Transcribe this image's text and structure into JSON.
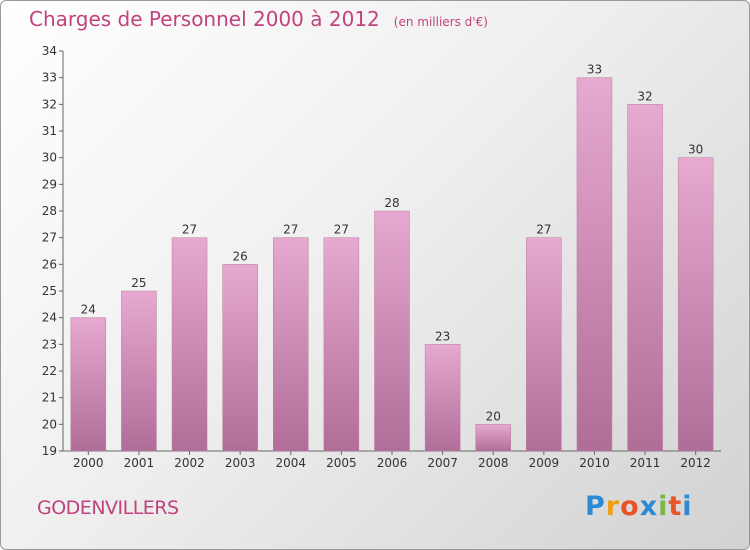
{
  "title": "Charges de Personnel 2000 à 2012",
  "subtitle": "(en milliers d'€)",
  "place_name": "GODENVILLERS",
  "logo": {
    "letters": [
      "P",
      "r",
      "o",
      "x",
      "i",
      "t",
      "i"
    ],
    "colors": [
      "#2b8ad6",
      "#f0a018",
      "#e8542a",
      "#2b8ad6",
      "#7ab648",
      "#e8542a",
      "#2b8ad6"
    ]
  },
  "colors": {
    "bar_light": "#e7a9cf",
    "bar_dark": "#b06d98",
    "title": "#c0437e"
  },
  "chart_data": {
    "type": "bar",
    "title": "Charges de Personnel 2000 à 2012",
    "subtitle": "(en milliers d'€)",
    "categories": [
      "2000",
      "2001",
      "2002",
      "2003",
      "2004",
      "2005",
      "2006",
      "2007",
      "2008",
      "2009",
      "2010",
      "2011",
      "2012"
    ],
    "values": [
      24,
      25,
      27,
      26,
      27,
      27,
      28,
      23,
      20,
      27,
      33,
      32,
      30
    ],
    "ylim": [
      19,
      34
    ],
    "yticks": [
      19,
      20,
      21,
      22,
      23,
      24,
      25,
      26,
      27,
      28,
      29,
      30,
      31,
      32,
      33,
      34
    ],
    "grid": false,
    "legend": "none"
  }
}
